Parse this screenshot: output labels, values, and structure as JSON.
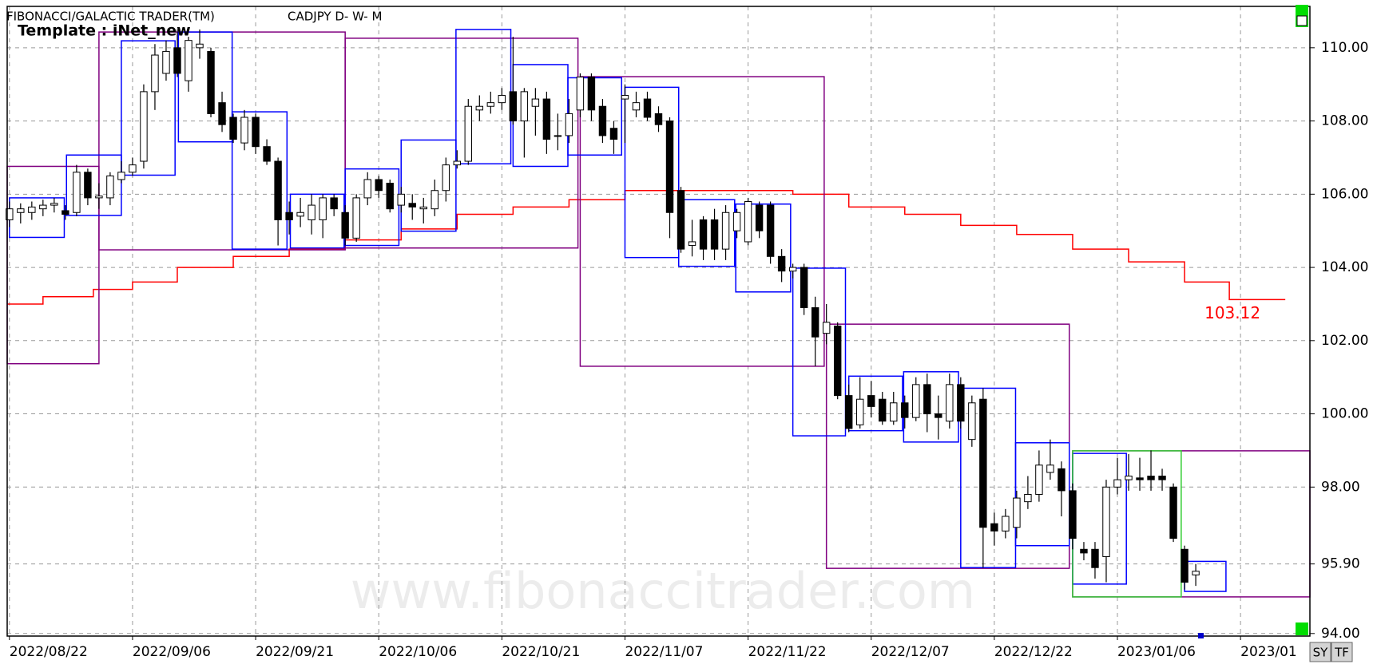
{
  "chart_data": {
    "type": "candlestick",
    "title": "FIBONACCI/GALACTIC TRADER(TM)",
    "subtitle": "CADJPY D- W- M",
    "template": "Template : iNet_new",
    "watermark": "www.fibonaccitrader.com",
    "buttons": [
      "SY",
      "TF"
    ],
    "up_color": "#ffffff",
    "down_color": "#000000",
    "open": [
      105.3,
      105.5,
      105.5,
      105.6,
      105.7,
      105.55,
      105.5,
      106.6,
      105.9,
      105.9,
      106.4,
      106.6,
      106.9,
      108.8,
      109.3,
      110.0,
      109.1,
      110.0,
      109.9,
      108.5,
      108.1,
      107.4,
      108.1,
      107.3,
      106.9,
      105.5,
      105.4,
      105.3,
      105.3,
      105.9,
      105.5,
      104.8,
      105.9,
      106.4,
      106.3,
      105.7,
      105.75,
      105.6,
      105.6,
      106.1,
      106.8,
      106.9,
      108.3,
      108.4,
      108.5,
      108.8,
      108.0,
      108.4,
      108.6,
      107.6,
      107.6,
      108.3,
      109.2,
      108.4,
      107.8,
      108.6,
      108.3,
      108.6,
      108.2,
      108.0,
      106.1,
      104.6,
      105.3,
      105.3,
      104.5,
      105.0,
      104.7,
      105.7,
      105.7,
      104.3,
      103.9,
      104.0,
      102.9,
      102.2,
      102.4,
      100.5,
      99.7,
      100.5,
      100.4,
      99.8,
      100.3,
      99.9,
      100.8,
      100.0,
      99.8,
      100.8,
      99.3,
      100.4,
      97.0,
      96.8,
      96.9,
      97.6,
      97.8,
      98.4,
      98.5,
      97.9,
      96.3,
      96.3,
      96.1,
      98.0,
      98.2,
      98.25,
      98.3,
      98.3,
      98.0,
      96.3,
      95.6
    ],
    "high": [
      105.8,
      105.75,
      105.8,
      105.85,
      105.9,
      105.7,
      106.8,
      106.7,
      106.3,
      106.6,
      106.9,
      107.0,
      109.0,
      110.1,
      110.2,
      110.5,
      110.3,
      110.5,
      110.0,
      108.8,
      108.2,
      108.3,
      108.2,
      107.5,
      107.0,
      105.8,
      105.9,
      106.0,
      106.0,
      106.0,
      105.7,
      106.0,
      106.6,
      106.5,
      106.4,
      106.2,
      106.0,
      105.9,
      106.4,
      107.0,
      107.2,
      108.6,
      108.7,
      108.8,
      108.9,
      110.3,
      108.9,
      108.9,
      108.8,
      108.2,
      108.6,
      109.3,
      109.3,
      108.6,
      108.0,
      109.0,
      108.8,
      108.8,
      108.4,
      108.1,
      106.2,
      105.3,
      105.4,
      105.6,
      105.7,
      105.6,
      105.9,
      105.8,
      105.8,
      104.5,
      104.1,
      104.1,
      103.2,
      103.0,
      102.5,
      100.8,
      101.0,
      100.9,
      100.6,
      100.6,
      100.5,
      101.0,
      101.1,
      100.5,
      101.1,
      101.0,
      100.5,
      100.7,
      97.3,
      97.4,
      97.9,
      98.3,
      99.0,
      99.3,
      98.7,
      98.1,
      96.5,
      96.5,
      98.2,
      98.8,
      98.9,
      98.8,
      99.0,
      98.5,
      98.1,
      96.4,
      95.9
    ],
    "low": [
      105.1,
      105.2,
      105.3,
      105.4,
      105.5,
      105.3,
      105.4,
      105.7,
      105.6,
      105.7,
      106.3,
      106.5,
      106.7,
      108.3,
      109.1,
      109.2,
      108.8,
      109.7,
      108.1,
      107.7,
      107.4,
      107.2,
      107.1,
      106.8,
      104.6,
      104.9,
      105.1,
      104.9,
      104.8,
      105.4,
      104.6,
      104.7,
      105.7,
      105.9,
      105.5,
      105.5,
      105.3,
      105.2,
      105.4,
      105.8,
      106.7,
      106.8,
      108.0,
      108.2,
      108.3,
      107.9,
      107.0,
      107.6,
      107.1,
      107.2,
      107.4,
      108.1,
      108.0,
      107.4,
      107.1,
      107.4,
      108.1,
      108.0,
      107.7,
      104.8,
      104.4,
      104.3,
      104.2,
      104.2,
      104.2,
      104.8,
      104.6,
      104.8,
      104.1,
      103.6,
      103.7,
      102.7,
      101.3,
      101.9,
      100.4,
      99.5,
      99.6,
      99.9,
      99.7,
      99.7,
      99.6,
      99.8,
      99.5,
      99.3,
      99.6,
      99.6,
      99.1,
      95.8,
      96.4,
      96.6,
      96.6,
      97.4,
      97.6,
      98.2,
      97.2,
      96.3,
      96.0,
      95.5,
      95.4,
      97.8,
      97.9,
      97.9,
      97.9,
      97.9,
      96.5,
      95.2,
      95.3
    ],
    "close": [
      105.6,
      105.6,
      105.65,
      105.7,
      105.75,
      105.45,
      106.6,
      105.9,
      105.95,
      106.5,
      106.6,
      106.8,
      108.8,
      109.8,
      109.9,
      109.3,
      110.2,
      110.1,
      108.2,
      107.9,
      107.5,
      108.1,
      107.3,
      106.9,
      105.3,
      105.3,
      105.5,
      105.7,
      105.9,
      105.6,
      104.8,
      105.9,
      106.4,
      106.1,
      105.6,
      106.0,
      105.65,
      105.65,
      106.1,
      106.8,
      106.9,
      108.4,
      108.4,
      108.5,
      108.7,
      108.0,
      108.8,
      108.6,
      107.5,
      107.6,
      108.2,
      109.2,
      108.3,
      107.6,
      107.5,
      108.7,
      108.5,
      108.1,
      107.9,
      105.5,
      104.5,
      104.7,
      104.5,
      104.5,
      105.5,
      105.5,
      105.8,
      105.0,
      104.3,
      103.9,
      104.0,
      102.9,
      102.1,
      102.5,
      100.5,
      99.6,
      100.4,
      100.2,
      99.8,
      100.3,
      99.9,
      100.8,
      100.0,
      99.9,
      100.8,
      99.8,
      100.3,
      96.9,
      96.8,
      97.2,
      97.7,
      97.8,
      98.6,
      98.6,
      97.9,
      96.6,
      96.2,
      95.8,
      98.0,
      98.2,
      98.3,
      98.2,
      98.2,
      98.2,
      96.6,
      95.4,
      95.7
    ],
    "line": {
      "color": "#ff0000",
      "label": "103.12",
      "edges": [
        -0.2,
        3,
        7.5,
        11,
        15,
        20,
        25,
        30,
        35,
        40,
        45,
        50,
        55,
        70,
        75,
        80,
        85,
        90,
        95,
        100,
        105,
        109,
        114
      ],
      "values": [
        103.0,
        103.2,
        103.4,
        103.6,
        104.0,
        104.3,
        104.5,
        104.75,
        105.05,
        105.45,
        105.65,
        105.85,
        106.1,
        106.0,
        105.65,
        105.45,
        105.15,
        104.9,
        104.5,
        104.15,
        103.6,
        103.12
      ]
    },
    "overlays": [
      {
        "color": "#800080",
        "boxes": [
          {
            "x": [
              -0.2,
              8
            ],
            "y": [
              101.37,
              106.76
            ]
          },
          {
            "x": [
              8,
              30
            ],
            "y": [
              104.48,
              110.43
            ]
          },
          {
            "x": [
              30,
              50.8
            ],
            "y": [
              104.53,
              110.26
            ]
          },
          {
            "x": [
              51,
              72.8
            ],
            "y": [
              101.3,
              109.21
            ]
          },
          {
            "x": [
              73,
              94.7
            ],
            "y": [
              95.78,
              102.45
            ]
          },
          {
            "x": [
              95,
              116.2
            ],
            "y": [
              95.0,
              98.99
            ]
          }
        ]
      },
      {
        "color": "#0000ff",
        "boxes": [
          {
            "x": [
              0,
              4.9
            ],
            "y": [
              104.82,
              105.9
            ]
          },
          {
            "x": [
              5.1,
              10
            ],
            "y": [
              105.42,
              107.07
            ]
          },
          {
            "x": [
              10,
              14.8
            ],
            "y": [
              106.52,
              110.19
            ]
          },
          {
            "x": [
              15.1,
              19.9
            ],
            "y": [
              107.43,
              110.43
            ]
          },
          {
            "x": [
              19.9,
              24.8
            ],
            "y": [
              104.5,
              108.25
            ]
          },
          {
            "x": [
              25.1,
              29.9
            ],
            "y": [
              104.53,
              106.0
            ]
          },
          {
            "x": [
              30,
              34.8
            ],
            "y": [
              104.6,
              106.69
            ]
          },
          {
            "x": [
              35,
              39.9
            ],
            "y": [
              104.99,
              107.48
            ]
          },
          {
            "x": [
              39.9,
              44.8
            ],
            "y": [
              106.83,
              110.5
            ]
          },
          {
            "x": [
              45,
              49.9
            ],
            "y": [
              106.76,
              109.54
            ]
          },
          {
            "x": [
              49.9,
              54.7
            ],
            "y": [
              107.07,
              109.18
            ]
          },
          {
            "x": [
              55,
              59.8
            ],
            "y": [
              104.27,
              108.92
            ]
          },
          {
            "x": [
              59.8,
              64.8
            ],
            "y": [
              104.03,
              105.85
            ]
          },
          {
            "x": [
              64.9,
              69.8
            ],
            "y": [
              103.33,
              105.73
            ]
          },
          {
            "x": [
              70,
              74.7
            ],
            "y": [
              99.4,
              103.98
            ]
          },
          {
            "x": [
              75,
              79.8
            ],
            "y": [
              99.54,
              101.03
            ]
          },
          {
            "x": [
              79.9,
              84.8
            ],
            "y": [
              99.23,
              101.15
            ]
          },
          {
            "x": [
              85,
              89.9
            ],
            "y": [
              95.8,
              100.7
            ]
          },
          {
            "x": [
              89.9,
              94.7
            ],
            "y": [
              96.4,
              99.21
            ]
          },
          {
            "x": [
              95,
              99.8
            ],
            "y": [
              95.35,
              98.92
            ]
          },
          {
            "x": [
              105,
              108.7
            ],
            "y": [
              95.15,
              95.97
            ]
          }
        ]
      },
      {
        "color": "#33cc33",
        "boxes": [
          {
            "x": [
              95,
              104.7
            ],
            "y": [
              95.0,
              98.99
            ]
          }
        ]
      }
    ],
    "xlim": [
      -0.2,
      116.2
    ],
    "ylim": [
      93.93,
      111.13
    ],
    "grid": true,
    "xticks": [
      {
        "value": 0,
        "label": "2022/08/22"
      },
      {
        "value": 11,
        "label": "2022/09/06"
      },
      {
        "value": 22,
        "label": "2022/09/21"
      },
      {
        "value": 33,
        "label": "2022/10/06"
      },
      {
        "value": 44,
        "label": "2022/10/21"
      },
      {
        "value": 55,
        "label": "2022/11/07"
      },
      {
        "value": 66,
        "label": "2022/11/22"
      },
      {
        "value": 77,
        "label": "2022/12/07"
      },
      {
        "value": 88,
        "label": "2022/12/22"
      },
      {
        "value": 99,
        "label": "2023/01/06"
      },
      {
        "value": 110,
        "label": "2023/01"
      }
    ],
    "yticks": [
      {
        "value": 110,
        "label": "110.00"
      },
      {
        "value": 108,
        "label": "108.00"
      },
      {
        "value": 106,
        "label": "106.00"
      },
      {
        "value": 104,
        "label": "104.00"
      },
      {
        "value": 102,
        "label": "102.00"
      },
      {
        "value": 100,
        "label": "100.00"
      },
      {
        "value": 98,
        "label": "98.00"
      },
      {
        "value": 95.9,
        "label": "95.90"
      },
      {
        "value": 94,
        "label": "94.00"
      }
    ]
  }
}
